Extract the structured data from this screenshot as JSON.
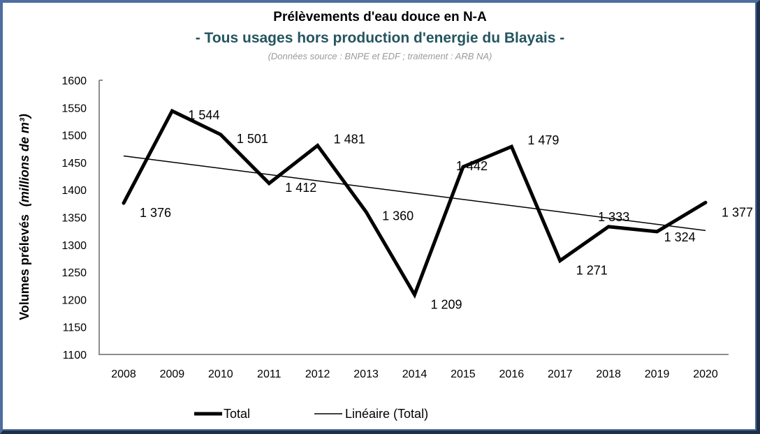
{
  "chart_data": {
    "type": "line",
    "title": "Prélèvements d'eau douce en N-A",
    "subtitle": "- Tous usages hors production d'energie du Blayais -",
    "source_note": "(Données source : BNPE et EDF ; traitement : ARB NA)",
    "xlabel": "",
    "ylabel": "Volumes prélevés",
    "ylabel_unit": "(millions de m³)",
    "x": [
      "2008",
      "2009",
      "2010",
      "2011",
      "2012",
      "2013",
      "2014",
      "2015",
      "2016",
      "2017",
      "2018",
      "2019",
      "2020"
    ],
    "series": [
      {
        "name": "Total",
        "values": [
          1376,
          1544,
          1501,
          1412,
          1481,
          1360,
          1209,
          1442,
          1479,
          1271,
          1333,
          1324,
          1377
        ],
        "labels": [
          "1 376",
          "1 544",
          "1 501",
          "1 412",
          "1 481",
          "1 360",
          "1 209",
          "1 442",
          "1 479",
          "1 271",
          "1 333",
          "1 324",
          "1 377"
        ],
        "color": "#000000",
        "style": "thick"
      },
      {
        "name": "Linéaire (Total)",
        "type": "trendline",
        "start": 1462,
        "end": 1326,
        "color": "#000000",
        "style": "thin"
      }
    ],
    "ylim": [
      1100,
      1600
    ],
    "yticks": [
      1100,
      1150,
      1200,
      1250,
      1300,
      1350,
      1400,
      1450,
      1500,
      1550,
      1600
    ],
    "grid": false,
    "legend": {
      "position": "bottom",
      "entries": [
        "Total",
        "Linéaire (Total)"
      ]
    }
  }
}
